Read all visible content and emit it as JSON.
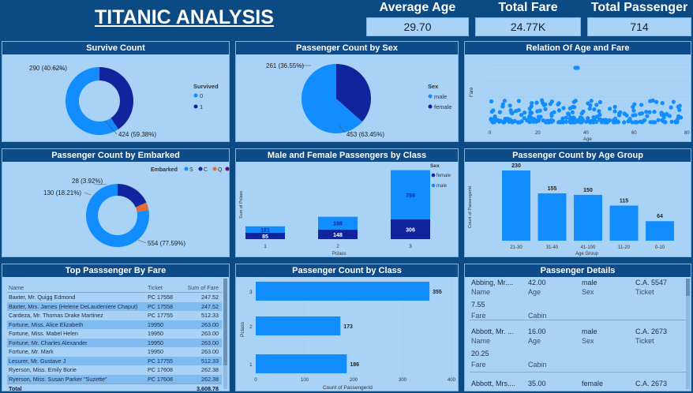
{
  "title": "TITANIC ANALYSIS",
  "kpis": [
    {
      "label": "Average Age",
      "value": "29.70"
    },
    {
      "label": "Total Fare",
      "value": "24.77K"
    },
    {
      "label": "Total Passenger",
      "value": "714"
    }
  ],
  "survive": {
    "title": "Survive Count",
    "legend_title": "Survived",
    "legend": [
      "0",
      "1"
    ],
    "labels": [
      "424 (59.38%)",
      "290 (40.62%)"
    ],
    "colors": [
      "#118dff",
      "#12239e"
    ]
  },
  "sex": {
    "title": "Passenger Count by Sex",
    "legend_title": "Sex",
    "legend": [
      "male",
      "female"
    ],
    "labels": [
      "453 (63.45%)",
      "261 (36.55%)"
    ],
    "colors": [
      "#118dff",
      "#12239e"
    ]
  },
  "age_fare": {
    "title": "Relation Of Age and Fare",
    "xlabel": "Age",
    "ylabel": "Fare",
    "xticks": [
      "0",
      "20",
      "40",
      "60",
      "80"
    ]
  },
  "embarked": {
    "title": "Passenger Count by Embarked",
    "legend_title": "Embarked",
    "legend": [
      "S",
      "C",
      "Q"
    ],
    "labels": [
      "554 (77.59%)",
      "130 (18.21%)",
      "28 (3.92%)"
    ],
    "colors": [
      "#118dff",
      "#12239e",
      "#e66c37",
      "#6b007b"
    ]
  },
  "class_sex": {
    "title": "Male and Female Passengers by Class",
    "legend_title": "Sex",
    "legend": [
      "female",
      "male"
    ],
    "xlabel": "Pclass",
    "ylabel": "Sum of Pclass"
  },
  "age_group": {
    "title": "Passenger Count by Age Group",
    "xlabel": "Age Group",
    "ylabel": "Count of PassengerId"
  },
  "top_fare": {
    "title": "Top Passsenger By Fare",
    "columns": [
      "Name",
      "Ticket",
      "Sum of Fare"
    ],
    "rows": [
      [
        "Baxter, Mr. Quigg Edmond",
        "PC 17558",
        "247.52"
      ],
      [
        "Baxter, Mrs. James (Helene DeLaudeniere Chaput)",
        "PC 17558",
        "247.52"
      ],
      [
        "Cardeza, Mr. Thomas Drake Martinez",
        "PC 17755",
        "512.33"
      ],
      [
        "Fortune, Miss. Alice Elizabeth",
        "19950",
        "263.00"
      ],
      [
        "Fortune, Miss. Mabel Helen",
        "19950",
        "263.00"
      ],
      [
        "Fortune, Mr. Charles Alexander",
        "19950",
        "263.00"
      ],
      [
        "Fortune, Mr. Mark",
        "19950",
        "263.00"
      ],
      [
        "Lesurer, Mr. Gustave J",
        "PC 17755",
        "512.33"
      ],
      [
        "Ryerson, Miss. Emily Borie",
        "PC 17608",
        "262.38"
      ],
      [
        "Ryerson, Miss. Susan Parker \"Suzette\"",
        "PC 17608",
        "262.38"
      ]
    ],
    "total_label": "Total",
    "total_value": "3,608.78"
  },
  "class_count": {
    "title": "Passenger Count by Class",
    "xlabel": "Count of PassengerId",
    "ylabel": "Pclass",
    "xticks": [
      "0",
      "100",
      "200",
      "300",
      "400"
    ]
  },
  "details": {
    "title": "Passenger Details",
    "cards": [
      {
        "name": "Abbing, Mr....",
        "age": "42.00",
        "sex": "male",
        "ticket": "C.A. 5547",
        "fare": "7.55",
        "l_name": "Name",
        "l_age": "Age",
        "l_sex": "Sex",
        "l_ticket": "Ticket",
        "l_fare": "Fare",
        "l_cabin": "Cabin"
      },
      {
        "name": "Abbott, Mr. ...",
        "age": "16.00",
        "sex": "male",
        "ticket": "C.A. 2673",
        "fare": "20.25",
        "l_name": "Name",
        "l_age": "Age",
        "l_sex": "Sex",
        "l_ticket": "Ticket",
        "l_fare": "Fare",
        "l_cabin": "Cabin"
      },
      {
        "name": "Abbott, Mrs....",
        "age": "35.00",
        "sex": "female",
        "ticket": "C.A. 2673"
      }
    ]
  },
  "chart_data": [
    {
      "type": "pie",
      "title": "Survive Count",
      "categories": [
        "0",
        "1"
      ],
      "values": [
        424,
        290
      ],
      "legend_title": "Survived"
    },
    {
      "type": "pie",
      "title": "Passenger Count by Sex",
      "categories": [
        "male",
        "female"
      ],
      "values": [
        453,
        261
      ],
      "legend_title": "Sex"
    },
    {
      "type": "scatter",
      "title": "Relation Of Age and Fare",
      "xlabel": "Age",
      "ylabel": "Fare",
      "xlim": [
        0,
        80
      ]
    },
    {
      "type": "pie",
      "title": "Passenger Count by Embarked",
      "categories": [
        "S",
        "C",
        "Q"
      ],
      "values": [
        554,
        130,
        28
      ],
      "legend_title": "Embarked"
    },
    {
      "type": "bar",
      "title": "Male and Female Passengers by Class",
      "categories": [
        "1",
        "2",
        "3"
      ],
      "xlabel": "Pclass",
      "ylabel": "Sum of Pclass",
      "series": [
        {
          "name": "female",
          "values": [
            85,
            148,
            306
          ]
        },
        {
          "name": "male",
          "values": [
            101,
            198,
            759
          ]
        }
      ]
    },
    {
      "type": "bar",
      "title": "Passenger Count by Age Group",
      "categories": [
        "21-30",
        "31-40",
        "41-100",
        "11-20",
        "0-10"
      ],
      "values": [
        230,
        155,
        150,
        115,
        64
      ],
      "xlabel": "Age Group",
      "ylabel": "Count of PassengerId"
    },
    {
      "type": "bar",
      "title": "Passenger Count by Class",
      "categories": [
        "3",
        "2",
        "1"
      ],
      "values": [
        355,
        173,
        186
      ],
      "xlabel": "Count of PassengerId",
      "ylabel": "Pclass",
      "xlim": [
        0,
        400
      ]
    }
  ]
}
